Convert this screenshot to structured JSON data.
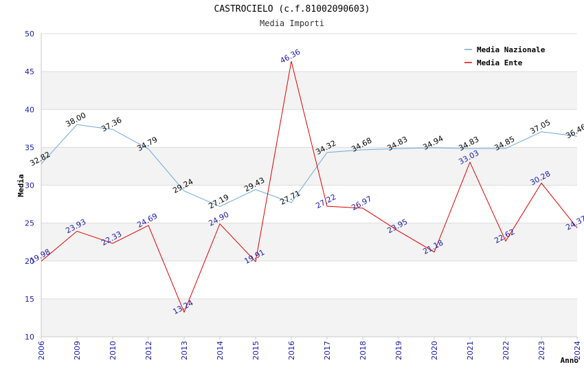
{
  "chart_data": {
    "type": "line",
    "title": "CASTROCIELO (c.f.81002090603)",
    "subtitle": "Media Importi",
    "xlabel": "Anno",
    "ylabel": "Media",
    "ylim": [
      10,
      50
    ],
    "yticks": [
      10,
      15,
      20,
      25,
      30,
      35,
      40,
      45,
      50
    ],
    "categories": [
      "2006",
      "2009",
      "2010",
      "2012",
      "2013",
      "2014",
      "2015",
      "2016",
      "2017",
      "2018",
      "2019",
      "2020",
      "2021",
      "2022",
      "2023",
      "2024"
    ],
    "series": [
      {
        "name": "Media Nazionale",
        "color": "#6fa8dc",
        "values": [
          32.82,
          38.0,
          37.36,
          34.79,
          29.24,
          27.19,
          29.43,
          27.71,
          34.32,
          34.68,
          34.83,
          34.94,
          34.83,
          34.85,
          37.05,
          36.46
        ],
        "labels": [
          "32.82",
          "38.00",
          "37.36",
          "34.79",
          "29.24",
          "27.19",
          "29.43",
          "27.71",
          "34.32",
          "34.68",
          "34.83",
          "34.94",
          "34.83",
          "34.85",
          "37.05",
          "36.46"
        ]
      },
      {
        "name": "Media Ente",
        "color": "#e00000",
        "values": [
          19.98,
          23.93,
          22.33,
          24.69,
          13.24,
          24.9,
          19.91,
          46.36,
          27.22,
          26.97,
          23.95,
          21.18,
          33.03,
          22.62,
          30.28,
          24.37
        ],
        "labels": [
          "19.98",
          "23.93",
          "22.33",
          "24.69",
          "13.24",
          "24.90",
          "19.91",
          "46.36",
          "27.22",
          "26.97",
          "23.95",
          "21.18",
          "33.03",
          "22.62",
          "30.28",
          "24.37"
        ]
      }
    ],
    "grid": true,
    "legend_position": "top-right"
  }
}
